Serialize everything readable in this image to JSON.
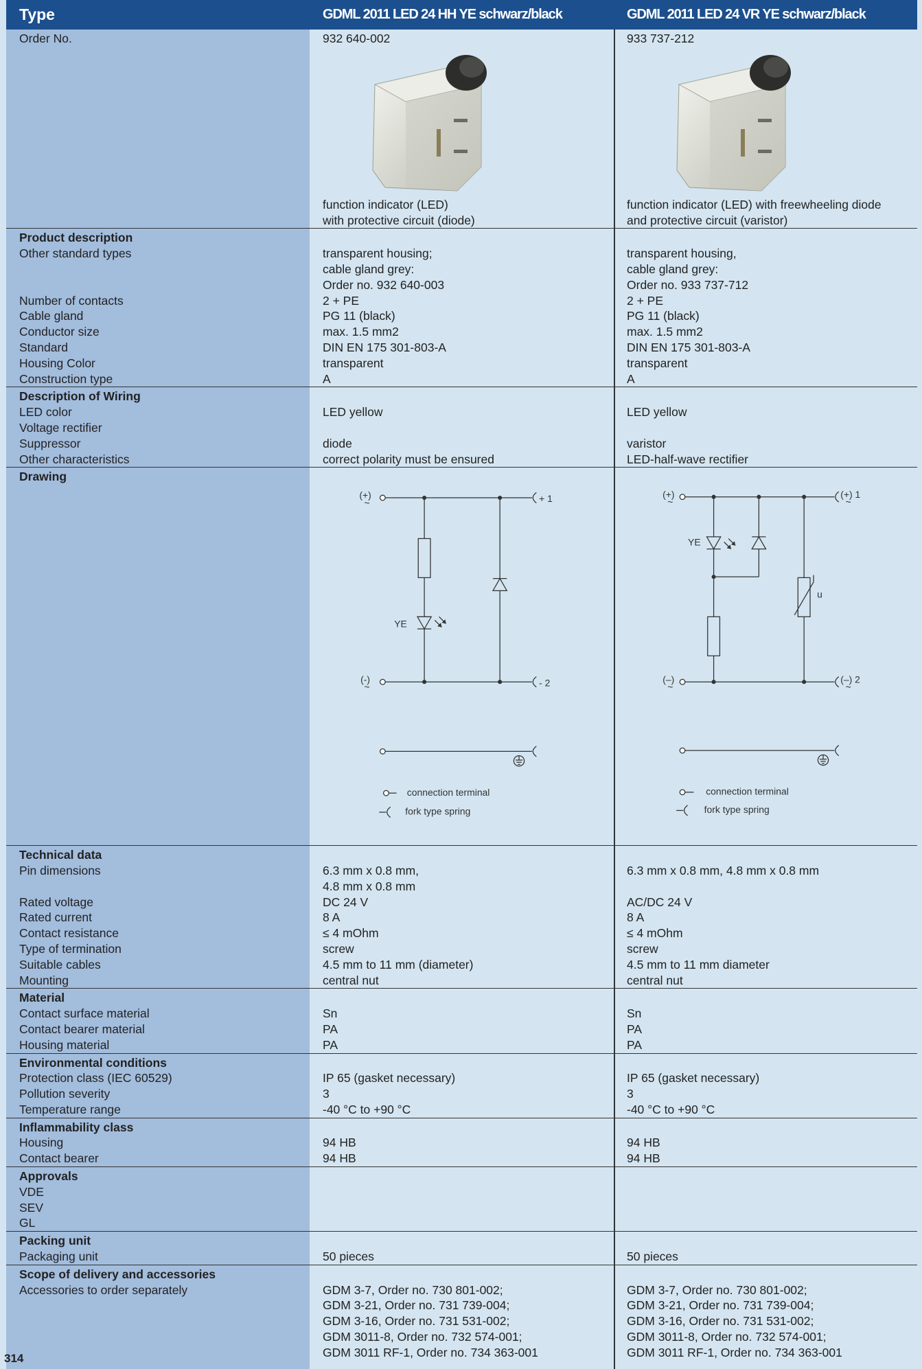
{
  "header": [
    "Type",
    "GDML 2011 LED 24 HH YE schwarz/black",
    "GDML 2011 LED 24 VR YE schwarz/black"
  ],
  "sections": [
    {
      "rows": [
        {
          "label": "Order No.",
          "values": [
            "932 640-002",
            "933 737-212"
          ]
        },
        {
          "label": null,
          "values": [
            [
              "function indicator (LED)",
              "with protective circuit (diode)"
            ],
            [
              "function indicator (LED) with freewheeling diode",
              "and protective circuit (varistor)"
            ]
          ]
        }
      ]
    },
    {
      "title": "Product description",
      "rows": [
        {
          "label": "Other standard types",
          "values": [
            [
              "transparent housing;",
              "cable gland grey:",
              "Order no. 932 640-003"
            ],
            [
              "transparent housing,",
              "cable gland grey:",
              "Order no. 933 737-712"
            ]
          ]
        },
        {
          "label": "Number of contacts",
          "values": [
            "2 + PE",
            "2 + PE"
          ]
        },
        {
          "label": "Cable gland",
          "values": [
            "PG 11 (black)",
            "PG 11 (black)"
          ]
        },
        {
          "label": "Conductor size",
          "values": [
            "max. 1.5 mm2",
            "max. 1.5 mm2"
          ]
        },
        {
          "label": "Standard",
          "values": [
            "DIN EN 175 301-803-A",
            "DIN EN 175 301-803-A"
          ]
        },
        {
          "label": "Housing Color",
          "values": [
            "transparent",
            "transparent"
          ]
        },
        {
          "label": "Construction type",
          "values": [
            "A",
            "A"
          ]
        }
      ]
    },
    {
      "title": "Description of Wiring",
      "rows": [
        {
          "label": "LED color",
          "values": [
            "LED yellow",
            "LED yellow"
          ]
        },
        {
          "label": "Voltage rectifier",
          "values": null
        },
        {
          "label": "Suppressor",
          "values": [
            "diode",
            "varistor"
          ]
        },
        {
          "label": "Other characteristics",
          "values": [
            "correct polarity must be ensured",
            "LED-half-wave rectifier"
          ]
        }
      ]
    },
    {
      "title": "Drawing",
      "rows": [],
      "drawings": [
        {
          "plus": "(+)",
          "minus": "(-)",
          "ac": "~",
          "out1": "+ 1",
          "out2": "- 2",
          "led": "YE",
          "legend": [
            "connection terminal",
            "fork type spring"
          ]
        },
        {
          "plus": "(+)",
          "minus": "(–)",
          "ac": "~",
          "out1": "(+)  1",
          "out2": "(–)  2",
          "led": "YE",
          "varistor": "u",
          "legend": [
            "connection terminal",
            "fork type spring"
          ]
        }
      ]
    },
    {
      "title": "Technical data",
      "rows": [
        {
          "label": "Pin dimensions",
          "values": [
            [
              "6.3 mm x 0.8 mm,",
              "4.8 mm x 0.8 mm"
            ],
            "6.3 mm x 0.8 mm, 4.8 mm x 0.8 mm"
          ]
        },
        {
          "label": "Rated voltage",
          "values": [
            "DC 24 V",
            "AC/DC 24 V"
          ]
        },
        {
          "label": "Rated current",
          "values": [
            "8 A",
            "8 A"
          ]
        },
        {
          "label": "Contact resistance",
          "values": [
            "≤ 4 mOhm",
            "≤ 4 mOhm"
          ]
        },
        {
          "label": "Type of termination",
          "values": [
            "screw",
            "screw"
          ]
        },
        {
          "label": "Suitable cables",
          "values": [
            "4.5 mm to 11 mm (diameter)",
            "4.5 mm to 11 mm diameter"
          ]
        },
        {
          "label": "Mounting",
          "values": [
            "central nut",
            "central nut"
          ]
        }
      ]
    },
    {
      "title": "Material",
      "rows": [
        {
          "label": "Contact surface material",
          "values": [
            "Sn",
            "Sn"
          ]
        },
        {
          "label": "Contact bearer material",
          "values": [
            "PA",
            "PA"
          ]
        },
        {
          "label": "Housing material",
          "values": [
            "PA",
            "PA"
          ]
        }
      ]
    },
    {
      "title": "Environmental conditions",
      "rows": [
        {
          "label": "Protection class (IEC 60529)",
          "values": [
            "IP 65 (gasket necessary)",
            "IP 65 (gasket necessary)"
          ]
        },
        {
          "label": "Pollution severity",
          "values": [
            "3",
            "3"
          ]
        },
        {
          "label": "Temperature range",
          "values": [
            "-40 °C to +90 °C",
            "-40 °C to +90 °C"
          ]
        }
      ]
    },
    {
      "title": "Inflammability class",
      "rows": [
        {
          "label": "Housing",
          "values": [
            "94 HB",
            "94 HB"
          ]
        },
        {
          "label": "Contact bearer",
          "values": [
            "94 HB",
            "94 HB"
          ]
        }
      ]
    },
    {
      "title": "Approvals",
      "rows": [
        {
          "label": "VDE",
          "values": null
        },
        {
          "label": "SEV",
          "values": null
        },
        {
          "label": "GL",
          "values": null
        }
      ]
    },
    {
      "title": "Packing unit",
      "rows": [
        {
          "label": "Packaging unit",
          "values": [
            "50 pieces",
            "50 pieces"
          ]
        }
      ]
    },
    {
      "title": "Scope of delivery and accessories",
      "rows": [
        {
          "label": "Accessories to order separately",
          "values": [
            [
              "GDM 3-7, Order no. 730 801-002;",
              "GDM 3-21, Order no. 731 739-004;",
              "GDM 3-16, Order no. 731 531-002;",
              "GDM 3011-8, Order no. 732 574-001;",
              "GDM 3011 RF-1, Order no. 734 363-001"
            ],
            [
              "GDM 3-7, Order no. 730 801-002;",
              "GDM 3-21, Order no. 731 739-004;",
              "GDM 3-16, Order no. 731 531-002;",
              "GDM 3011-8, Order no. 732 574-001;",
              "GDM 3011 RF-1, Order no. 734 363-001"
            ]
          ]
        }
      ]
    }
  ],
  "page_number": "314"
}
